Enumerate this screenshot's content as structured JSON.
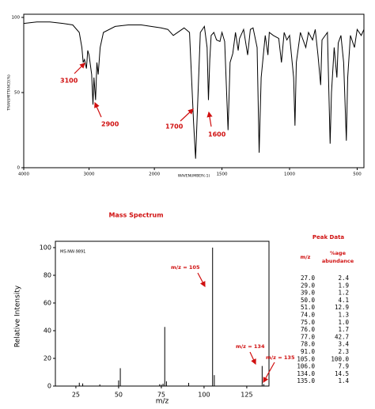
{
  "chart_data": [
    {
      "type": "line",
      "x_label": "WAVENUMBER(-1)",
      "y_label": "TRANSMITTANCE(%)",
      "xlim": [
        4000,
        450
      ],
      "ylim": [
        0,
        100
      ],
      "x_scale_break": 2000,
      "xticks": [
        4000,
        3000,
        2000,
        1500,
        1000,
        500
      ],
      "yticks": [
        0,
        50,
        100
      ],
      "annotations": [
        "3100",
        "2900",
        "1700",
        "1600"
      ],
      "x": [
        4000,
        3800,
        3600,
        3400,
        3250,
        3150,
        3110,
        3090,
        3070,
        3040,
        3020,
        3000,
        2960,
        2940,
        2925,
        2900,
        2880,
        2860,
        2830,
        2780,
        2600,
        2400,
        2200,
        2050,
        1950,
        1900,
        1860,
        1780,
        1740,
        1710,
        1695,
        1685,
        1660,
        1630,
        1610,
        1600,
        1590,
        1580,
        1560,
        1540,
        1515,
        1500,
        1480,
        1455,
        1440,
        1420,
        1400,
        1380,
        1370,
        1340,
        1310,
        1290,
        1270,
        1240,
        1225,
        1210,
        1180,
        1160,
        1150,
        1120,
        1080,
        1060,
        1040,
        1020,
        1000,
        970,
        960,
        950,
        920,
        880,
        860,
        830,
        810,
        790,
        770,
        760,
        720,
        700,
        690,
        670,
        650,
        640,
        620,
        600,
        580,
        570,
        550,
        520,
        500,
        470,
        450
      ],
      "series": [
        {
          "color": "#000000",
          "values": [
            96,
            97,
            97,
            96,
            95,
            90,
            80,
            70,
            72,
            66,
            78,
            75,
            62,
            42,
            60,
            45,
            70,
            62,
            80,
            90,
            94,
            95,
            95,
            94,
            93,
            92,
            88,
            93,
            90,
            30,
            6,
            30,
            90,
            94,
            80,
            45,
            72,
            88,
            90,
            85,
            84,
            90,
            84,
            25,
            70,
            76,
            90,
            78,
            86,
            92,
            75,
            92,
            93,
            80,
            10,
            60,
            88,
            75,
            90,
            88,
            86,
            70,
            90,
            85,
            88,
            60,
            28,
            70,
            90,
            80,
            90,
            85,
            92,
            75,
            55,
            85,
            90,
            16,
            50,
            80,
            60,
            83,
            88,
            70,
            18,
            60,
            88,
            80,
            92,
            88,
            92
          ]
        }
      ]
    },
    {
      "type": "bar",
      "title": "Mass Spectrum",
      "x_label": "m/z",
      "y_label": "Relative Intensity",
      "inset_label": "MS-NW-9891",
      "xlim": [
        13,
        138
      ],
      "ylim": [
        0,
        100
      ],
      "xticks": [
        25,
        50,
        75,
        100,
        125
      ],
      "yticks": [
        0,
        20,
        40,
        60,
        80,
        100
      ],
      "annotations": [
        "m/z = 105",
        "m/z = 134",
        "m/z = 135"
      ],
      "x": [
        27,
        29,
        39,
        50,
        51,
        74,
        75,
        76,
        77,
        78,
        91,
        105,
        106,
        134,
        135
      ],
      "series": [
        {
          "color": "#000000",
          "values": [
            2.4,
            1.9,
            1.2,
            4.1,
            12.9,
            1.3,
            1.0,
            1.7,
            42.7,
            3.4,
            2.3,
            100.0,
            7.9,
            14.5,
            1.4
          ]
        }
      ]
    }
  ],
  "peak_table": {
    "title": "Peak Data",
    "headers": [
      "m/z",
      "%age",
      "abundance"
    ],
    "rows": [
      [
        "27.0",
        "2.4"
      ],
      [
        "29.0",
        "1.9"
      ],
      [
        "39.0",
        "1.2"
      ],
      [
        "50.0",
        "4.1"
      ],
      [
        "51.0",
        "12.9"
      ],
      [
        "74.0",
        "1.3"
      ],
      [
        "75.0",
        "1.0"
      ],
      [
        "76.0",
        "1.7"
      ],
      [
        "77.0",
        "42.7"
      ],
      [
        "78.0",
        "3.4"
      ],
      [
        "91.0",
        "2.3"
      ],
      [
        "105.0",
        "100.0"
      ],
      [
        "106.0",
        "7.9"
      ],
      [
        "134.0",
        "14.5"
      ],
      [
        "135.0",
        "1.4"
      ]
    ]
  }
}
